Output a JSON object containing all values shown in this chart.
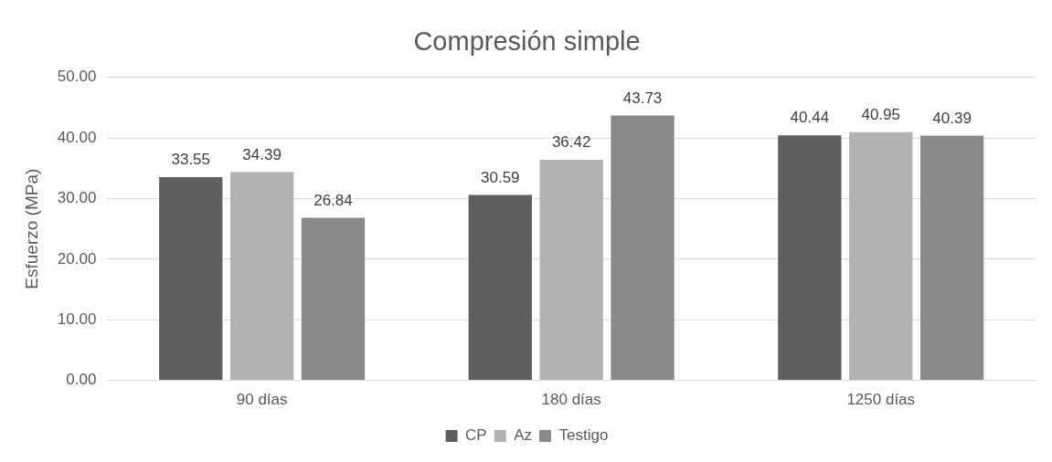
{
  "chart_data": {
    "type": "bar",
    "title": "Compresión simple",
    "ylabel": "Esfuerzo (MPa)",
    "categories": [
      "90 días",
      "180 días",
      "1250 días"
    ],
    "series": [
      {
        "name": "CP",
        "color": "#5f5f5f",
        "values": [
          33.55,
          30.59,
          40.44
        ]
      },
      {
        "name": "Az",
        "color": "#b2b2b2",
        "values": [
          34.39,
          36.42,
          40.95
        ]
      },
      {
        "name": "Testigo",
        "color": "#898989",
        "values": [
          26.84,
          43.73,
          40.39
        ]
      }
    ],
    "ylim": [
      0,
      50
    ],
    "yticks": [
      {
        "value": 0,
        "label": "0.00"
      },
      {
        "value": 10,
        "label": "10.00"
      },
      {
        "value": 20,
        "label": "20.00"
      },
      {
        "value": 30,
        "label": "30.00"
      },
      {
        "value": 40,
        "label": "40.00"
      },
      {
        "value": 50,
        "label": "50.00"
      }
    ],
    "grid": "y",
    "legend": "bottom",
    "data_labels": true
  }
}
